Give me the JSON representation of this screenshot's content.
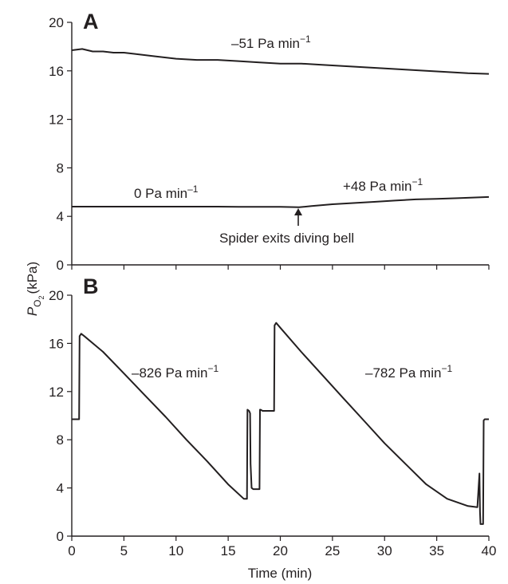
{
  "chart_data": [
    {
      "panel_label": "A",
      "type": "line",
      "xlim": [
        0,
        40
      ],
      "ylim": [
        0,
        20
      ],
      "x_ticks": [
        0,
        5,
        10,
        15,
        20,
        25,
        30,
        35,
        40
      ],
      "y_ticks": [
        "0",
        "4",
        "8",
        "12",
        "16",
        "20"
      ],
      "ylabel": "(kPa)",
      "ylabel_symbol": "P",
      "ylabel_subscript": "O",
      "ylabel_subscript2": "2",
      "grid": false,
      "series": [
        {
          "x": [
            0,
            1,
            2,
            3,
            4,
            5,
            6,
            8,
            10,
            12,
            14,
            16,
            18,
            20,
            22,
            24,
            26,
            28,
            30,
            32,
            34,
            36,
            38,
            40
          ],
          "y": [
            17.7,
            17.8,
            17.6,
            17.6,
            17.5,
            17.5,
            17.4,
            17.2,
            17.0,
            16.9,
            16.9,
            16.8,
            16.7,
            16.6,
            16.6,
            16.5,
            16.4,
            16.3,
            16.2,
            16.1,
            16.0,
            15.9,
            15.8,
            15.75
          ]
        },
        {
          "x": [
            0,
            2,
            4,
            6,
            8,
            10,
            12,
            14,
            16,
            18,
            20,
            21.8,
            23,
            25,
            27,
            29,
            31,
            33,
            35,
            37,
            40
          ],
          "y": [
            4.8,
            4.8,
            4.8,
            4.8,
            4.8,
            4.8,
            4.8,
            4.8,
            4.78,
            4.78,
            4.78,
            4.75,
            4.85,
            5.0,
            5.1,
            5.2,
            5.3,
            5.4,
            5.45,
            5.5,
            5.6
          ]
        }
      ],
      "annotations": [
        {
          "text": "–51 Pa min",
          "exp": "−1"
        },
        {
          "text": "0 Pa min",
          "exp": "–1"
        },
        {
          "text": "+48 Pa min",
          "exp": "−1"
        },
        {
          "text": "Spider exits diving bell",
          "arrow_at_x": 21.8
        }
      ]
    },
    {
      "panel_label": "B",
      "type": "line",
      "xlim": [
        0,
        40
      ],
      "ylim": [
        0,
        20
      ],
      "x_ticks": [
        0,
        5,
        10,
        15,
        20,
        25,
        30,
        35,
        40
      ],
      "x_tick_labels": [
        "0",
        "5",
        "10",
        "15",
        "20",
        "25",
        "30",
        "35",
        "40"
      ],
      "y_ticks": [
        "0",
        "4",
        "8",
        "12",
        "16",
        "20"
      ],
      "xlabel": "Time (min)",
      "grid": false,
      "series": [
        {
          "x": [
            0,
            0.7,
            0.75,
            0.9,
            1.2,
            3,
            5,
            7,
            9,
            11,
            13,
            15,
            16.5,
            16.8,
            16.85,
            17.0,
            17.1,
            17.15,
            17.25,
            17.4,
            18.0,
            18.05,
            18.1,
            18.3,
            19.0,
            19.4,
            19.45,
            19.6,
            20,
            22,
            24,
            26,
            28,
            30,
            32,
            34,
            36,
            38,
            38.9,
            39.1,
            39.15,
            39.2,
            39.3,
            39.45,
            39.5,
            39.6,
            40
          ],
          "y": [
            9.7,
            9.7,
            16.6,
            16.8,
            16.6,
            15.3,
            13.5,
            11.7,
            9.9,
            8.0,
            6.2,
            4.3,
            3.1,
            3.1,
            10.5,
            10.4,
            10.2,
            6.0,
            4.0,
            3.9,
            3.9,
            10.5,
            10.5,
            10.4,
            10.4,
            10.4,
            17.5,
            17.7,
            17.3,
            15.3,
            13.4,
            11.5,
            9.6,
            7.7,
            6.0,
            4.3,
            3.1,
            2.5,
            2.4,
            5.2,
            2.0,
            1.0,
            1.0,
            1.0,
            9.6,
            9.7,
            9.7
          ]
        }
      ],
      "annotations": [
        {
          "text": "–826 Pa min",
          "exp": "−1"
        },
        {
          "text": "–782 Pa min",
          "exp": "−1"
        }
      ]
    }
  ]
}
